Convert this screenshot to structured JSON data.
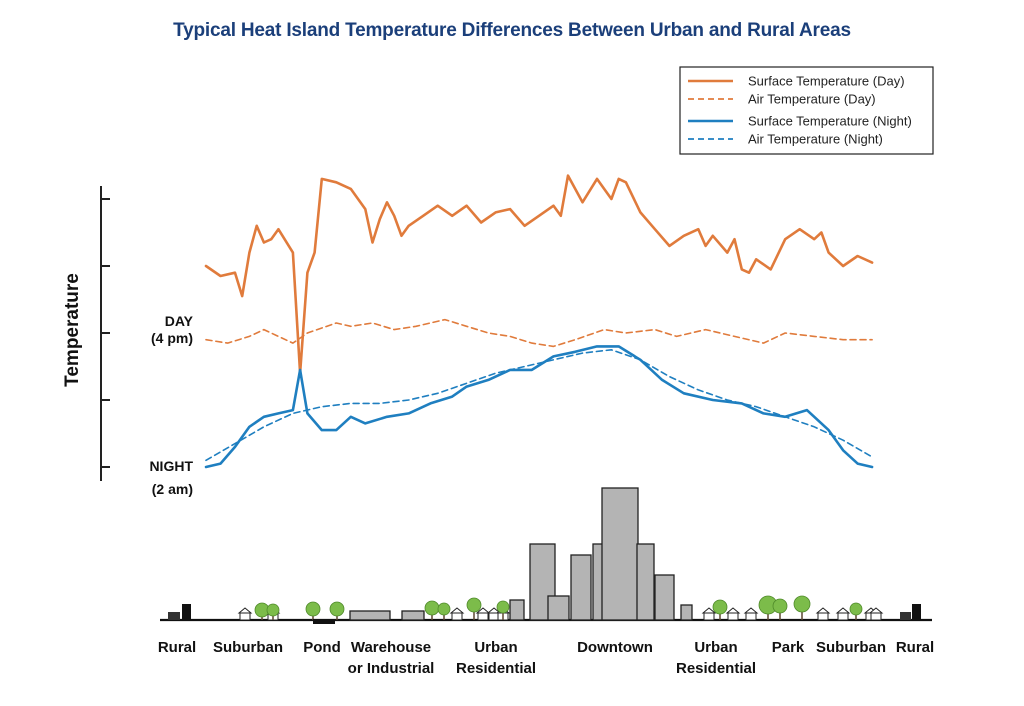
{
  "chart_data": {
    "type": "line",
    "title": "Typical Heat Island Temperature Differences Between Urban and Rural Areas",
    "ylabel": "Temperature",
    "y_markers": [
      {
        "label": "DAY",
        "sublabel": "(4 pm)"
      },
      {
        "label": "NIGHT",
        "sublabel": "(2 am)"
      }
    ],
    "legend_position": "top-right",
    "grid": false,
    "colors": {
      "day": "#e07b3c",
      "night": "#1f7fc0"
    },
    "zones": [
      {
        "lines": [
          "Rural"
        ]
      },
      {
        "lines": [
          "Suburban"
        ]
      },
      {
        "lines": [
          "Pond"
        ]
      },
      {
        "lines": [
          "Warehouse",
          "or Industrial"
        ]
      },
      {
        "lines": [
          "Urban",
          "Residential"
        ]
      },
      {
        "lines": [
          "Downtown"
        ]
      },
      {
        "lines": [
          "Urban",
          "Residential"
        ]
      },
      {
        "lines": [
          "Park"
        ]
      },
      {
        "lines": [
          "Suburban"
        ]
      },
      {
        "lines": [
          "Rural"
        ]
      }
    ],
    "series": [
      {
        "name": "Surface Temperature (Day)",
        "style": "solid",
        "color": "#e07b3c",
        "points": [
          [
            0,
            3.0
          ],
          [
            0.02,
            2.85
          ],
          [
            0.04,
            2.9
          ],
          [
            0.05,
            2.55
          ],
          [
            0.06,
            3.2
          ],
          [
            0.07,
            3.6
          ],
          [
            0.08,
            3.35
          ],
          [
            0.09,
            3.4
          ],
          [
            0.1,
            3.55
          ],
          [
            0.12,
            3.2
          ],
          [
            0.13,
            1.4
          ],
          [
            0.14,
            2.9
          ],
          [
            0.15,
            3.2
          ],
          [
            0.16,
            4.3
          ],
          [
            0.18,
            4.25
          ],
          [
            0.2,
            4.15
          ],
          [
            0.22,
            3.85
          ],
          [
            0.23,
            3.35
          ],
          [
            0.24,
            3.7
          ],
          [
            0.25,
            3.95
          ],
          [
            0.26,
            3.75
          ],
          [
            0.27,
            3.45
          ],
          [
            0.28,
            3.6
          ],
          [
            0.3,
            3.75
          ],
          [
            0.32,
            3.9
          ],
          [
            0.34,
            3.75
          ],
          [
            0.36,
            3.9
          ],
          [
            0.38,
            3.65
          ],
          [
            0.4,
            3.8
          ],
          [
            0.42,
            3.85
          ],
          [
            0.44,
            3.6
          ],
          [
            0.46,
            3.75
          ],
          [
            0.48,
            3.9
          ],
          [
            0.49,
            3.75
          ],
          [
            0.5,
            4.35
          ],
          [
            0.52,
            3.95
          ],
          [
            0.54,
            4.3
          ],
          [
            0.56,
            4.0
          ],
          [
            0.57,
            4.3
          ],
          [
            0.58,
            4.25
          ],
          [
            0.6,
            3.8
          ],
          [
            0.62,
            3.55
          ],
          [
            0.64,
            3.3
          ],
          [
            0.66,
            3.45
          ],
          [
            0.68,
            3.55
          ],
          [
            0.69,
            3.3
          ],
          [
            0.7,
            3.45
          ],
          [
            0.72,
            3.2
          ],
          [
            0.73,
            3.4
          ],
          [
            0.74,
            2.95
          ],
          [
            0.75,
            2.9
          ],
          [
            0.76,
            3.1
          ],
          [
            0.78,
            2.95
          ],
          [
            0.8,
            3.4
          ],
          [
            0.82,
            3.55
          ],
          [
            0.84,
            3.4
          ],
          [
            0.85,
            3.5
          ],
          [
            0.86,
            3.2
          ],
          [
            0.88,
            3.0
          ],
          [
            0.9,
            3.15
          ],
          [
            0.92,
            3.05
          ]
        ]
      },
      {
        "name": "Air Temperature  (Day)",
        "style": "dashed",
        "color": "#e07b3c",
        "points": [
          [
            0,
            1.9
          ],
          [
            0.03,
            1.85
          ],
          [
            0.06,
            1.95
          ],
          [
            0.08,
            2.05
          ],
          [
            0.1,
            1.95
          ],
          [
            0.12,
            1.85
          ],
          [
            0.14,
            2.0
          ],
          [
            0.18,
            2.15
          ],
          [
            0.2,
            2.1
          ],
          [
            0.23,
            2.15
          ],
          [
            0.26,
            2.05
          ],
          [
            0.29,
            2.1
          ],
          [
            0.33,
            2.2
          ],
          [
            0.36,
            2.1
          ],
          [
            0.39,
            2.0
          ],
          [
            0.42,
            1.95
          ],
          [
            0.45,
            1.85
          ],
          [
            0.48,
            1.8
          ],
          [
            0.51,
            1.9
          ],
          [
            0.55,
            2.05
          ],
          [
            0.58,
            2.0
          ],
          [
            0.62,
            2.05
          ],
          [
            0.65,
            1.95
          ],
          [
            0.69,
            2.05
          ],
          [
            0.73,
            1.95
          ],
          [
            0.77,
            1.85
          ],
          [
            0.8,
            2.0
          ],
          [
            0.84,
            1.95
          ],
          [
            0.88,
            1.9
          ],
          [
            0.92,
            1.9
          ]
        ]
      },
      {
        "name": "Surface Temperature (Night)",
        "style": "solid",
        "color": "#1f7fc0",
        "points": [
          [
            0,
            0.0
          ],
          [
            0.02,
            0.05
          ],
          [
            0.04,
            0.3
          ],
          [
            0.06,
            0.6
          ],
          [
            0.08,
            0.75
          ],
          [
            0.1,
            0.8
          ],
          [
            0.12,
            0.85
          ],
          [
            0.13,
            1.45
          ],
          [
            0.14,
            0.8
          ],
          [
            0.16,
            0.55
          ],
          [
            0.18,
            0.55
          ],
          [
            0.2,
            0.75
          ],
          [
            0.22,
            0.65
          ],
          [
            0.25,
            0.75
          ],
          [
            0.28,
            0.8
          ],
          [
            0.31,
            0.95
          ],
          [
            0.34,
            1.05
          ],
          [
            0.36,
            1.2
          ],
          [
            0.39,
            1.3
          ],
          [
            0.42,
            1.45
          ],
          [
            0.45,
            1.45
          ],
          [
            0.48,
            1.65
          ],
          [
            0.51,
            1.72
          ],
          [
            0.54,
            1.8
          ],
          [
            0.57,
            1.8
          ],
          [
            0.6,
            1.6
          ],
          [
            0.63,
            1.3
          ],
          [
            0.66,
            1.1
          ],
          [
            0.7,
            1.0
          ],
          [
            0.74,
            0.95
          ],
          [
            0.77,
            0.8
          ],
          [
            0.8,
            0.75
          ],
          [
            0.83,
            0.85
          ],
          [
            0.86,
            0.55
          ],
          [
            0.88,
            0.25
          ],
          [
            0.9,
            0.05
          ],
          [
            0.92,
            0.0
          ]
        ]
      },
      {
        "name": "Air Temperature (Night)",
        "style": "dashed",
        "color": "#1f7fc0",
        "points": [
          [
            0,
            0.1
          ],
          [
            0.04,
            0.35
          ],
          [
            0.08,
            0.6
          ],
          [
            0.12,
            0.8
          ],
          [
            0.16,
            0.9
          ],
          [
            0.2,
            0.95
          ],
          [
            0.24,
            0.95
          ],
          [
            0.28,
            1.0
          ],
          [
            0.32,
            1.1
          ],
          [
            0.36,
            1.25
          ],
          [
            0.4,
            1.4
          ],
          [
            0.44,
            1.5
          ],
          [
            0.48,
            1.6
          ],
          [
            0.52,
            1.7
          ],
          [
            0.56,
            1.75
          ],
          [
            0.6,
            1.6
          ],
          [
            0.64,
            1.35
          ],
          [
            0.68,
            1.15
          ],
          [
            0.72,
            1.0
          ],
          [
            0.76,
            0.9
          ],
          [
            0.8,
            0.75
          ],
          [
            0.84,
            0.6
          ],
          [
            0.88,
            0.4
          ],
          [
            0.92,
            0.15
          ]
        ]
      }
    ]
  }
}
